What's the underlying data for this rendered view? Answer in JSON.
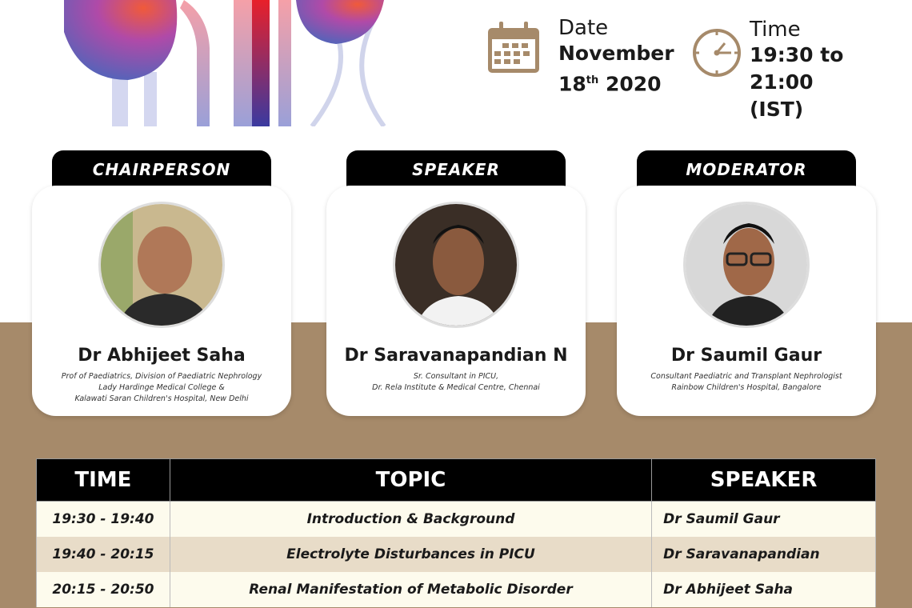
{
  "header": {
    "date_label": "Date",
    "date_month": "November",
    "date_day": "18",
    "date_suffix": "th",
    "date_year": "2020",
    "time_label": "Time",
    "time_value": "19:30 to 21:00",
    "time_zone": "(IST)",
    "icons": [
      "calendar-icon",
      "clock-icon"
    ],
    "accent_color": "#a68a6a"
  },
  "panel": [
    {
      "role": "CHAIRPERSON",
      "name": "Dr Abhijeet Saha",
      "desc": [
        "Prof of Paediatrics, Division of Paediatric Nephrology",
        "Lady Hardinge Medical College &",
        "Kalawati Saran Children's Hospital, New Delhi"
      ]
    },
    {
      "role": "SPEAKER",
      "name": "Dr Saravanapandian N",
      "desc": [
        "Sr. Consultant in PICU,",
        "Dr. Rela Institute & Medical Centre, Chennai"
      ]
    },
    {
      "role": "MODERATOR",
      "name": "Dr Saumil Gaur",
      "desc": [
        "Consultant Paediatric and Transplant Nephrologist",
        "Rainbow Children's Hospital, Bangalore"
      ]
    }
  ],
  "schedule": {
    "headers": [
      "TIME",
      "TOPIC",
      "SPEAKER"
    ],
    "rows": [
      {
        "time": "19:30 - 19:40",
        "topic": "Introduction & Background",
        "speaker": "Dr Saumil Gaur"
      },
      {
        "time": "19:40 - 20:15",
        "topic": "Electrolyte Disturbances in PICU",
        "speaker": "Dr Saravanapandian"
      },
      {
        "time": "20:15 - 20:50",
        "topic": "Renal Manifestation of Metabolic Disorder",
        "speaker": "Dr Abhijeet Saha"
      }
    ]
  }
}
